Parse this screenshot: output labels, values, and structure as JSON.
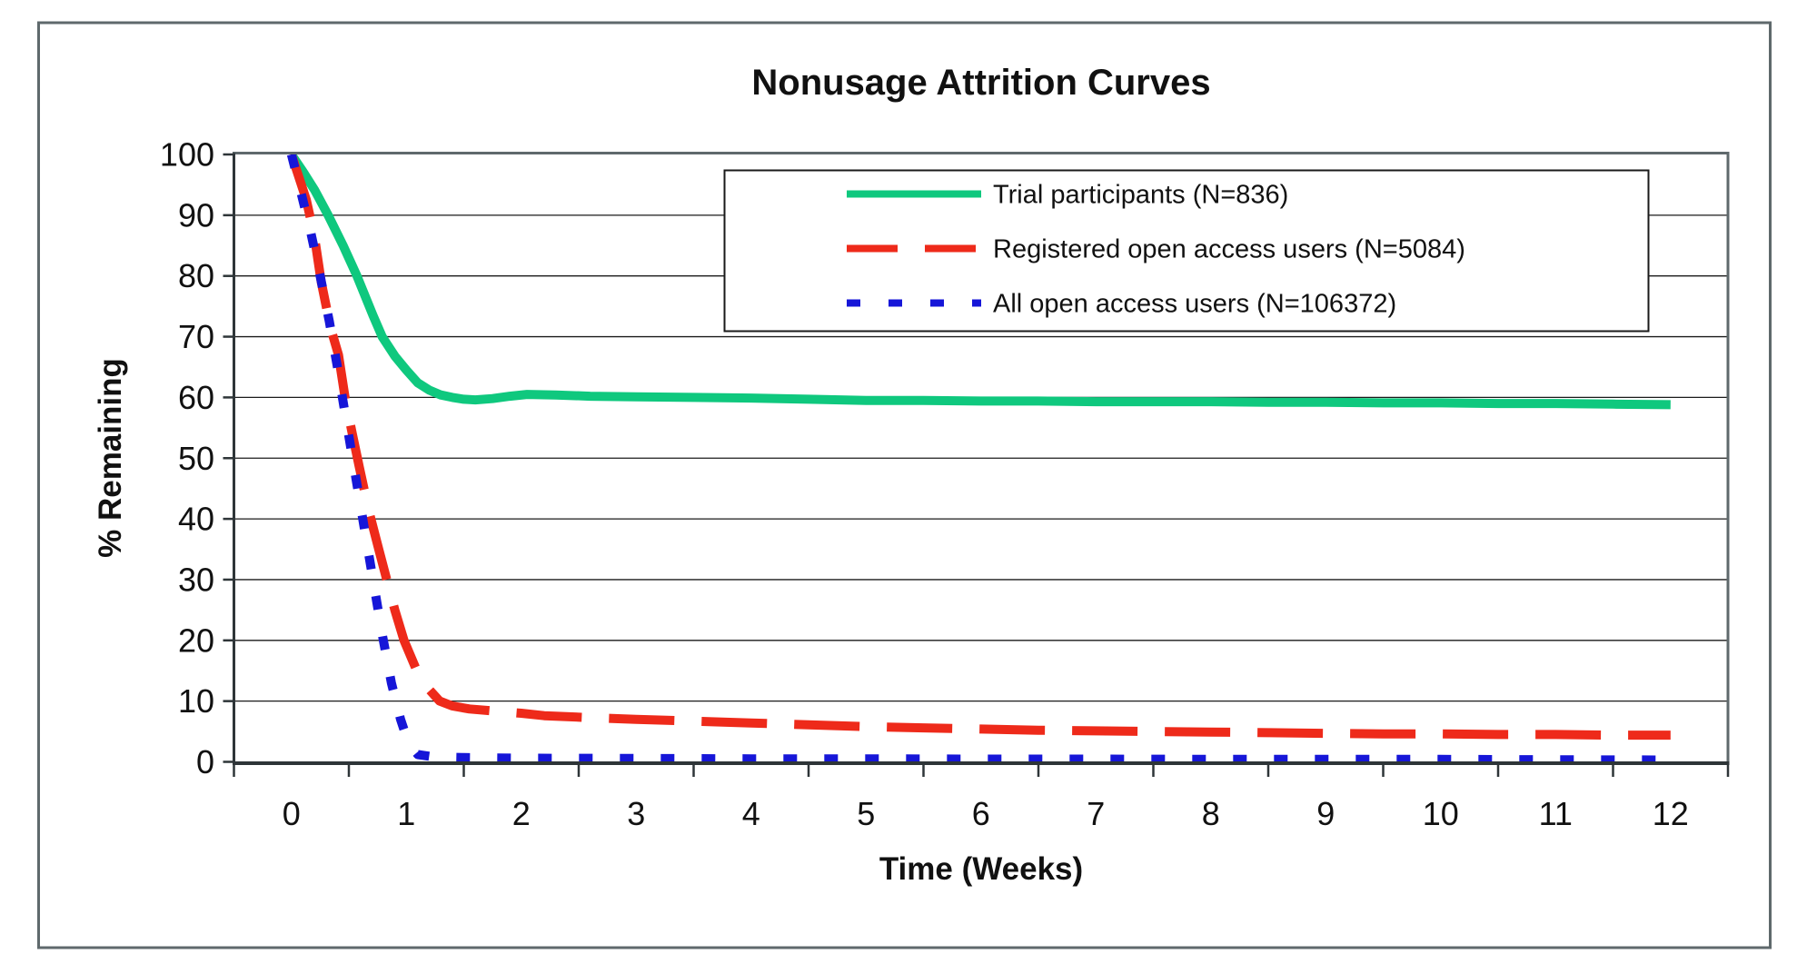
{
  "chart_data": {
    "type": "line",
    "title": "Nonusage Attrition Curves",
    "xlabel": "Time (Weeks)",
    "ylabel": "% Remaining",
    "x_ticks": [
      0,
      1,
      2,
      3,
      4,
      5,
      6,
      7,
      8,
      9,
      10,
      11,
      12
    ],
    "y_ticks": [
      0,
      10,
      20,
      30,
      40,
      50,
      60,
      70,
      80,
      90,
      100
    ],
    "xlim": [
      -0.5,
      12.5
    ],
    "ylim": [
      0,
      100
    ],
    "grid": "horizontal-every-10",
    "legend_position": "top-center-inside",
    "frame_color": "#5f696c",
    "axis_color": "#2e3538",
    "gridline_color": "#1a1a1a",
    "series": [
      {
        "name": "Trial participants (N=836)",
        "color": "#0fc87e",
        "style": "solid",
        "points": [
          [
            0,
            100
          ],
          [
            0.1,
            97.2
          ],
          [
            0.2,
            94.2
          ],
          [
            0.32,
            90
          ],
          [
            0.45,
            85
          ],
          [
            0.57,
            80
          ],
          [
            0.71,
            73.5
          ],
          [
            0.79,
            70
          ],
          [
            0.9,
            66.8
          ],
          [
            1.0,
            64.5
          ],
          [
            1.1,
            62.4
          ],
          [
            1.2,
            61.2
          ],
          [
            1.3,
            60.4
          ],
          [
            1.4,
            60.0
          ],
          [
            1.5,
            59.7
          ],
          [
            1.6,
            59.6
          ],
          [
            1.75,
            59.8
          ],
          [
            1.9,
            60.2
          ],
          [
            2.05,
            60.5
          ],
          [
            2.3,
            60.4
          ],
          [
            2.6,
            60.2
          ],
          [
            3.0,
            60.1
          ],
          [
            3.5,
            60.0
          ],
          [
            4.0,
            59.9
          ],
          [
            4.5,
            59.7
          ],
          [
            5.0,
            59.5
          ],
          [
            5.5,
            59.5
          ],
          [
            6.0,
            59.4
          ],
          [
            6.5,
            59.4
          ],
          [
            7.0,
            59.3
          ],
          [
            7.5,
            59.3
          ],
          [
            8.0,
            59.3
          ],
          [
            8.5,
            59.2
          ],
          [
            9.0,
            59.2
          ],
          [
            9.5,
            59.1
          ],
          [
            10.0,
            59.1
          ],
          [
            10.5,
            59.0
          ],
          [
            11.0,
            59.0
          ],
          [
            11.5,
            58.9
          ],
          [
            12.0,
            58.8
          ]
        ]
      },
      {
        "name": "Registered open access users (N=5084)",
        "color": "#ee2a1a",
        "style": "long-dash",
        "points": [
          [
            0,
            100
          ],
          [
            0.13,
            92.5
          ],
          [
            0.2,
            86.5
          ],
          [
            0.26,
            79
          ],
          [
            0.34,
            71.5
          ],
          [
            0.41,
            67
          ],
          [
            0.47,
            59.6
          ],
          [
            0.53,
            54
          ],
          [
            0.59,
            48.6
          ],
          [
            0.67,
            41.6
          ],
          [
            0.76,
            35
          ],
          [
            0.83,
            30
          ],
          [
            0.9,
            25
          ],
          [
            0.98,
            20
          ],
          [
            1.08,
            15.5
          ],
          [
            1.17,
            12.5
          ],
          [
            1.29,
            10
          ],
          [
            1.4,
            9.2
          ],
          [
            1.55,
            8.7
          ],
          [
            1.8,
            8.3
          ],
          [
            2.0,
            8.0
          ],
          [
            2.2,
            7.6
          ],
          [
            2.7,
            7.2
          ],
          [
            3.0,
            7.0
          ],
          [
            3.5,
            6.7
          ],
          [
            4.0,
            6.4
          ],
          [
            4.5,
            6.1
          ],
          [
            5.0,
            5.8
          ],
          [
            5.5,
            5.6
          ],
          [
            6.0,
            5.4
          ],
          [
            6.5,
            5.2
          ],
          [
            7.0,
            5.1
          ],
          [
            7.5,
            5.0
          ],
          [
            8.0,
            4.9
          ],
          [
            8.5,
            4.8
          ],
          [
            9.0,
            4.7
          ],
          [
            9.5,
            4.6
          ],
          [
            10.0,
            4.6
          ],
          [
            10.5,
            4.5
          ],
          [
            11.0,
            4.5
          ],
          [
            11.5,
            4.4
          ],
          [
            12.0,
            4.4
          ]
        ]
      },
      {
        "name": "All open access users (N=106372)",
        "color": "#1616d8",
        "style": "square-dot",
        "points": [
          [
            0,
            100
          ],
          [
            0.08,
            94
          ],
          [
            0.17,
            87
          ],
          [
            0.25,
            80
          ],
          [
            0.33,
            72.5
          ],
          [
            0.4,
            65
          ],
          [
            0.47,
            57
          ],
          [
            0.55,
            48
          ],
          [
            0.63,
            39
          ],
          [
            0.71,
            30
          ],
          [
            0.79,
            21
          ],
          [
            0.87,
            13
          ],
          [
            0.95,
            7
          ],
          [
            1.02,
            3
          ],
          [
            1.1,
            1.2
          ],
          [
            1.25,
            0.8
          ],
          [
            1.5,
            0.7
          ],
          [
            2,
            0.6
          ],
          [
            3,
            0.55
          ],
          [
            4,
            0.5
          ],
          [
            5,
            0.5
          ],
          [
            6,
            0.45
          ],
          [
            7,
            0.45
          ],
          [
            8,
            0.4
          ],
          [
            9,
            0.4
          ],
          [
            10,
            0.4
          ],
          [
            11,
            0.35
          ],
          [
            12,
            0.3
          ]
        ]
      }
    ]
  }
}
